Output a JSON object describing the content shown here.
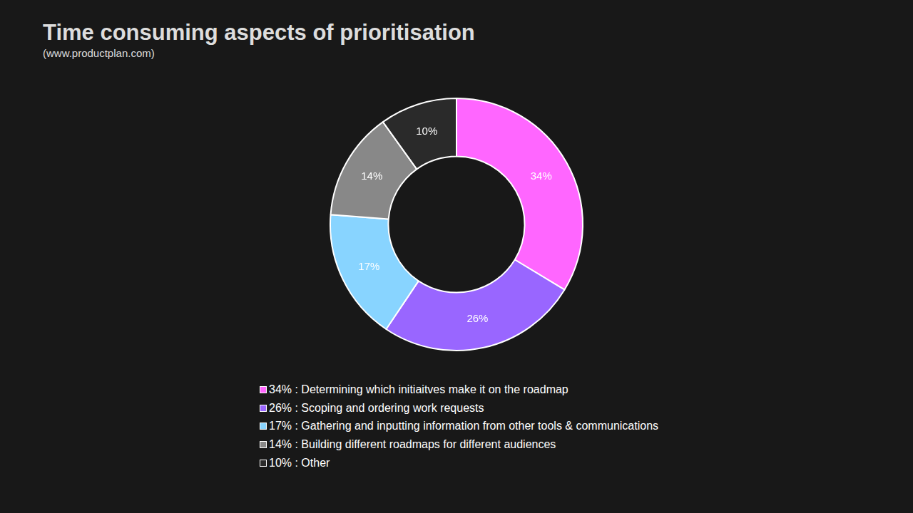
{
  "chart_data": {
    "type": "doughnut",
    "title": "Time consuming aspects of prioritisation",
    "subtitle": "(www.productplan.com)",
    "categories": [
      "34% : Determining which initiaitves make it on the roadmap",
      "26% : Scoping and ordering work requests",
      "17% : Gathering and inputting information from other tools & communications",
      "14% : Building different roadmaps for different audiences",
      "10% : Other"
    ],
    "values": [
      34,
      26,
      17,
      14,
      10
    ],
    "value_labels": [
      "34%",
      "26%",
      "17%",
      "14%",
      "10%"
    ],
    "colors": [
      "#ff66ff",
      "#9966ff",
      "#88d4ff",
      "#888888",
      "#2a2a2a"
    ],
    "data_labels": true,
    "legend": "bottom"
  }
}
